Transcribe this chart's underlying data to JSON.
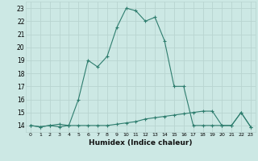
{
  "xlabel": "Humidex (Indice chaleur)",
  "x_values": [
    0,
    1,
    2,
    3,
    4,
    5,
    6,
    7,
    8,
    9,
    10,
    11,
    12,
    13,
    14,
    15,
    16,
    17,
    18,
    19,
    20,
    21,
    22,
    23
  ],
  "series1": [
    14,
    13.9,
    14,
    14.1,
    14,
    16,
    19,
    18.5,
    19.3,
    21.5,
    23,
    22.8,
    22,
    22.3,
    20.5,
    17,
    17,
    14,
    14,
    14,
    14,
    14,
    15,
    13.9
  ],
  "series2": [
    14,
    13.9,
    14,
    13.9,
    14,
    14,
    14,
    14,
    14,
    14.1,
    14.2,
    14.3,
    14.5,
    14.6,
    14.7,
    14.8,
    14.9,
    15.0,
    15.1,
    15.1,
    14,
    14,
    15,
    13.9
  ],
  "line_color": "#2e7d6e",
  "bg_color": "#cce8e4",
  "grid_color": "#b8d4d0",
  "ylim": [
    13.5,
    23.5
  ],
  "xlim": [
    -0.5,
    23.5
  ],
  "yticks": [
    14,
    15,
    16,
    17,
    18,
    19,
    20,
    21,
    22,
    23
  ],
  "xtick_labels": [
    "0",
    "1",
    "2",
    "3",
    "4",
    "5",
    "6",
    "7",
    "8",
    "9",
    "10",
    "11",
    "12",
    "13",
    "14",
    "15",
    "16",
    "17",
    "18",
    "19",
    "20",
    "21",
    "22",
    "23"
  ]
}
